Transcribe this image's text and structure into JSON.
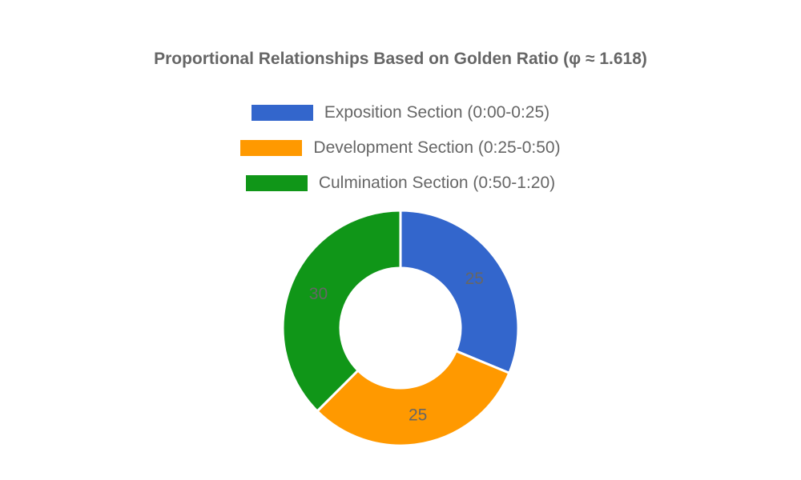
{
  "chart_data": {
    "type": "pie",
    "subtype": "doughnut",
    "title": "Proportional Relationships Based on Golden Ratio (φ ≈ 1.618)",
    "categories": [
      "Exposition Section (0:00-0:25)",
      "Development Section (0:25-0:50)",
      "Culmination Section (0:50-1:20)"
    ],
    "values": [
      25,
      25,
      30
    ],
    "colors": [
      "#3366CC",
      "#FF9900",
      "#109618"
    ],
    "data_labels": [
      "25",
      "25",
      "30"
    ],
    "legend_position": "top",
    "label_color": "#666666"
  }
}
